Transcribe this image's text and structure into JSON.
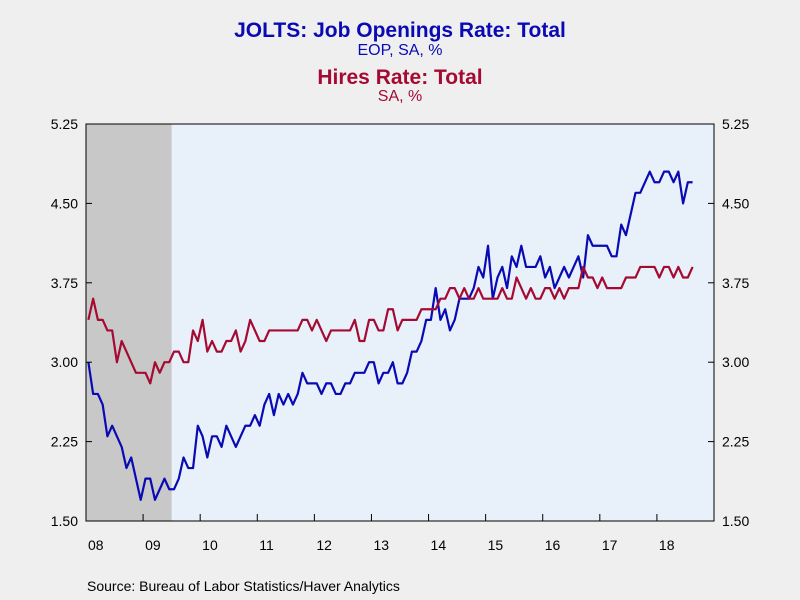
{
  "titles": {
    "line1": "JOLTS: Job Openings Rate: Total",
    "line2": "EOP, SA, %",
    "line3": "Hires Rate: Total",
    "line4": "SA, %"
  },
  "source": "Source:  Bureau of Labor Statistics/Haver Analytics",
  "colors": {
    "job_openings": "#0a0ab4",
    "hires": "#a50a32",
    "plot_bg": "#e8f0fa",
    "recession": "#c8c8c8"
  },
  "chart_data": {
    "type": "line",
    "x_start": "2008-01",
    "x_end": "2018-12",
    "ylim": [
      1.5,
      5.25
    ],
    "yticks": [
      "1.50",
      "2.25",
      "3.00",
      "3.75",
      "4.50",
      "5.25"
    ],
    "ytick_values": [
      1.5,
      2.25,
      3.0,
      3.75,
      4.5,
      5.25
    ],
    "xticks": [
      "08",
      "09",
      "10",
      "11",
      "12",
      "13",
      "14",
      "15",
      "16",
      "17",
      "18"
    ],
    "recession": [
      "2008-01",
      "2009-06"
    ],
    "series": [
      {
        "key": "job_openings",
        "values": [
          3.0,
          2.7,
          2.7,
          2.6,
          2.3,
          2.4,
          2.3,
          2.2,
          2.0,
          2.1,
          1.9,
          1.7,
          1.9,
          1.9,
          1.7,
          1.8,
          1.9,
          1.8,
          1.8,
          1.9,
          2.1,
          2.0,
          2.0,
          2.4,
          2.3,
          2.1,
          2.3,
          2.3,
          2.2,
          2.4,
          2.3,
          2.2,
          2.3,
          2.4,
          2.4,
          2.5,
          2.4,
          2.6,
          2.7,
          2.5,
          2.7,
          2.6,
          2.7,
          2.6,
          2.7,
          2.9,
          2.8,
          2.8,
          2.8,
          2.7,
          2.8,
          2.8,
          2.7,
          2.7,
          2.8,
          2.8,
          2.9,
          2.9,
          2.9,
          3.0,
          3.0,
          2.8,
          2.9,
          2.9,
          3.0,
          2.8,
          2.8,
          2.9,
          3.1,
          3.1,
          3.2,
          3.4,
          3.4,
          3.7,
          3.4,
          3.5,
          3.3,
          3.4,
          3.6,
          3.6,
          3.6,
          3.7,
          3.9,
          3.8,
          4.1,
          3.6,
          3.8,
          3.9,
          3.7,
          4.0,
          3.9,
          4.1,
          3.9,
          3.9,
          3.9,
          4.0,
          3.8,
          3.9,
          3.7,
          3.8,
          3.9,
          3.8,
          3.9,
          4.0,
          3.8,
          4.2,
          4.1,
          4.1,
          4.1,
          4.1,
          4.0,
          4.0,
          4.3,
          4.2,
          4.4,
          4.6,
          4.6,
          4.7,
          4.8,
          4.7,
          4.7,
          4.8,
          4.8,
          4.7,
          4.8,
          4.5,
          4.7,
          4.7
        ]
      },
      {
        "key": "hires",
        "values": [
          3.4,
          3.6,
          3.4,
          3.4,
          3.3,
          3.3,
          3.0,
          3.2,
          3.1,
          3.0,
          2.9,
          2.9,
          2.9,
          2.8,
          3.0,
          2.9,
          3.0,
          3.0,
          3.1,
          3.1,
          3.0,
          3.0,
          3.3,
          3.2,
          3.4,
          3.1,
          3.2,
          3.1,
          3.1,
          3.2,
          3.2,
          3.3,
          3.1,
          3.2,
          3.4,
          3.3,
          3.2,
          3.2,
          3.3,
          3.3,
          3.3,
          3.3,
          3.3,
          3.3,
          3.3,
          3.4,
          3.4,
          3.3,
          3.4,
          3.3,
          3.2,
          3.3,
          3.3,
          3.3,
          3.3,
          3.3,
          3.4,
          3.2,
          3.2,
          3.4,
          3.4,
          3.3,
          3.3,
          3.5,
          3.5,
          3.3,
          3.4,
          3.4,
          3.4,
          3.4,
          3.5,
          3.5,
          3.5,
          3.5,
          3.6,
          3.6,
          3.7,
          3.7,
          3.6,
          3.7,
          3.6,
          3.6,
          3.7,
          3.6,
          3.6,
          3.6,
          3.6,
          3.7,
          3.6,
          3.6,
          3.8,
          3.7,
          3.6,
          3.7,
          3.6,
          3.6,
          3.7,
          3.7,
          3.6,
          3.7,
          3.6,
          3.7,
          3.7,
          3.7,
          3.9,
          3.8,
          3.8,
          3.7,
          3.8,
          3.7,
          3.7,
          3.7,
          3.7,
          3.8,
          3.8,
          3.8,
          3.9,
          3.9,
          3.9,
          3.9,
          3.8,
          3.9,
          3.9,
          3.8,
          3.9,
          3.8,
          3.8,
          3.9
        ]
      }
    ]
  }
}
